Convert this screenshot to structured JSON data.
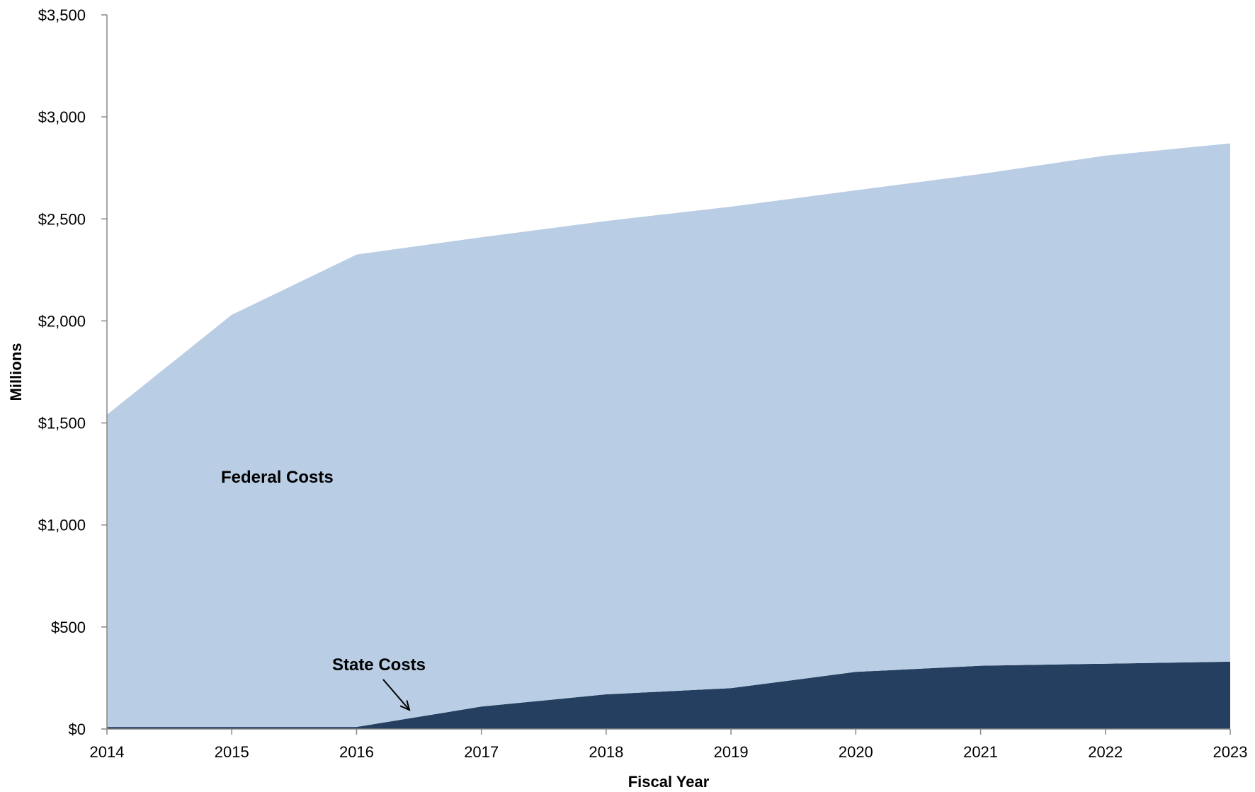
{
  "chart_data": {
    "type": "area",
    "stacked": true,
    "x": [
      "2014",
      "2015",
      "2016",
      "2017",
      "2018",
      "2019",
      "2020",
      "2021",
      "2022",
      "2023"
    ],
    "series": [
      {
        "name": "State Costs",
        "color": "#243f60",
        "values": [
          10,
          10,
          10,
          110,
          170,
          200,
          280,
          310,
          320,
          330
        ]
      },
      {
        "name": "Federal Costs",
        "color": "#b9cde4",
        "values": [
          1530,
          2020,
          2315,
          2300,
          2320,
          2360,
          2360,
          2410,
          2490,
          2540
        ]
      }
    ],
    "xlabel": "Fiscal Year",
    "ylabel": "Millions",
    "ylim": [
      0,
      3500
    ],
    "yticks": [
      0,
      500,
      1000,
      1500,
      2000,
      2500,
      3000,
      3500
    ],
    "ytick_labels": [
      "$0",
      "$500",
      "$1,000",
      "$1,500",
      "$2,000",
      "$2,500",
      "$3,000",
      "$3,500"
    ],
    "grid": false,
    "legend": "none",
    "annotations": [
      {
        "text": "Federal Costs",
        "series": "Federal Costs"
      },
      {
        "text": "State Costs",
        "series": "State Costs",
        "arrow": true
      }
    ]
  }
}
